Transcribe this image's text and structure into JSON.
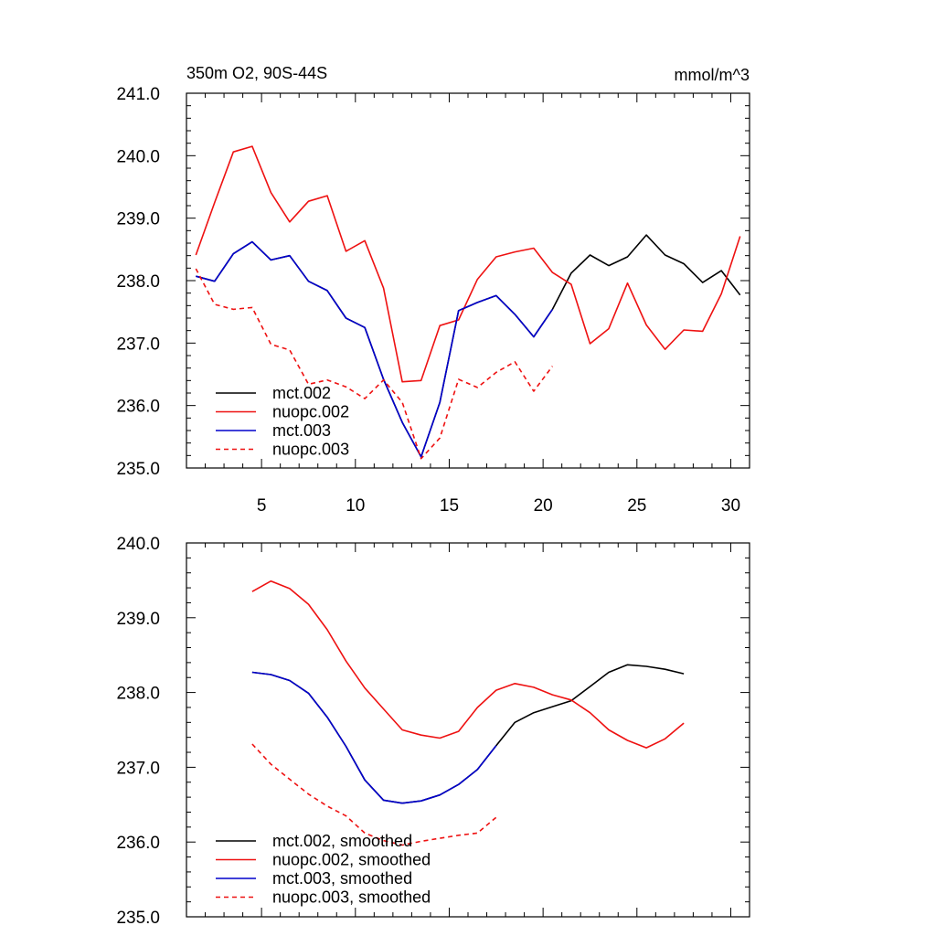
{
  "chart_data": [
    {
      "type": "line",
      "title": "350m O2, 90S-44S",
      "units": "mmol/m^3",
      "xlabel": "",
      "ylabel": "",
      "xlim": [
        1,
        31
      ],
      "ylim": [
        235.0,
        241.0
      ],
      "x_ticks": [
        5,
        10,
        15,
        20,
        25,
        30
      ],
      "x_tick_labels": [
        "5",
        "10",
        "15",
        "20",
        "25",
        "30"
      ],
      "y_ticks": [
        235.0,
        236.0,
        237.0,
        238.0,
        239.0,
        240.0,
        241.0
      ],
      "y_tick_labels": [
        "235.0",
        "236.0",
        "237.0",
        "238.0",
        "239.0",
        "240.0",
        "241.0"
      ],
      "legend_position": "bottom-left",
      "series": [
        {
          "name": "mct.002",
          "color": "#000000",
          "dash": "solid",
          "x": [
            1.5,
            2.5,
            3.5,
            4.5,
            5.5,
            6.5,
            7.5,
            8.5,
            9.5,
            10.5,
            11.5,
            12.5,
            13.5,
            14.5,
            15.5,
            16.5,
            17.5,
            18.5,
            19.5,
            20.5,
            21.5,
            22.5,
            23.5,
            24.5,
            25.5,
            26.5,
            27.5,
            28.5,
            29.5,
            30.5
          ],
          "values": [
            238.07,
            237.99,
            238.43,
            238.62,
            238.33,
            238.4,
            237.99,
            237.84,
            237.4,
            237.25,
            236.42,
            235.73,
            235.18,
            236.05,
            237.52,
            237.65,
            237.76,
            237.46,
            237.1,
            237.54,
            238.12,
            238.41,
            238.24,
            238.38,
            238.73,
            238.41,
            238.27,
            237.97,
            238.16,
            237.77
          ]
        },
        {
          "name": "nuopc.002",
          "color": "#ee1111",
          "dash": "solid",
          "x": [
            1.5,
            2.5,
            3.5,
            4.5,
            5.5,
            6.5,
            7.5,
            8.5,
            9.5,
            10.5,
            11.5,
            12.5,
            13.5,
            14.5,
            15.5,
            16.5,
            17.5,
            18.5,
            19.5,
            20.5,
            21.5,
            22.5,
            23.5,
            24.5,
            25.5,
            26.5,
            27.5,
            28.5,
            29.5,
            30.5
          ],
          "values": [
            238.41,
            239.25,
            240.06,
            240.15,
            239.41,
            238.94,
            239.27,
            239.36,
            238.47,
            238.64,
            237.88,
            236.38,
            236.4,
            237.28,
            237.37,
            238.02,
            238.38,
            238.46,
            238.52,
            238.13,
            237.94,
            236.99,
            237.23,
            237.96,
            237.29,
            236.9,
            237.21,
            237.19,
            237.79,
            238.71
          ]
        },
        {
          "name": "mct.003",
          "color": "#0000cc",
          "dash": "solid",
          "x": [
            1.5,
            2.5,
            3.5,
            4.5,
            5.5,
            6.5,
            7.5,
            8.5,
            9.5,
            10.5,
            11.5,
            12.5,
            13.5,
            14.5,
            15.5,
            16.5,
            17.5,
            18.5,
            19.5,
            20.5
          ],
          "values": [
            238.07,
            237.99,
            238.43,
            238.62,
            238.33,
            238.4,
            237.99,
            237.84,
            237.4,
            237.25,
            236.42,
            235.73,
            235.18,
            236.05,
            237.52,
            237.65,
            237.76,
            237.46,
            237.1,
            237.54
          ]
        },
        {
          "name": "nuopc.003",
          "color": "#ee1111",
          "dash": "dashed",
          "x": [
            1.5,
            2.5,
            3.5,
            4.5,
            5.5,
            6.5,
            7.5,
            8.5,
            9.5,
            10.5,
            11.5,
            12.5,
            13.5,
            14.5,
            15.5,
            16.5,
            17.5,
            18.5,
            19.5,
            20.5
          ],
          "values": [
            238.19,
            237.62,
            237.54,
            237.57,
            236.98,
            236.89,
            236.34,
            236.41,
            236.3,
            236.11,
            236.41,
            236.05,
            235.15,
            235.48,
            236.42,
            236.29,
            236.53,
            236.7,
            236.23,
            236.63
          ]
        }
      ]
    },
    {
      "type": "line",
      "title": "",
      "xlabel": "",
      "ylabel": "",
      "xlim": [
        1,
        31
      ],
      "ylim": [
        235.0,
        240.0
      ],
      "x_ticks": [
        5,
        10,
        15,
        20,
        25,
        30
      ],
      "x_tick_labels": [],
      "y_ticks": [
        235.0,
        236.0,
        237.0,
        238.0,
        239.0,
        240.0
      ],
      "y_tick_labels": [
        "235.0",
        "236.0",
        "237.0",
        "238.0",
        "239.0",
        "240.0"
      ],
      "legend_position": "bottom-left",
      "series": [
        {
          "name": "mct.002, smoothed",
          "color": "#000000",
          "dash": "solid",
          "x": [
            4.5,
            5.5,
            6.5,
            7.5,
            8.5,
            9.5,
            10.5,
            11.5,
            12.5,
            13.5,
            14.5,
            15.5,
            16.5,
            17.5,
            18.5,
            19.5,
            20.5,
            21.5,
            22.5,
            23.5,
            24.5,
            25.5,
            26.5,
            27.5
          ],
          "values": [
            238.27,
            238.24,
            238.16,
            237.99,
            237.67,
            237.28,
            236.83,
            236.56,
            236.52,
            236.55,
            236.63,
            236.77,
            236.97,
            237.29,
            237.6,
            237.73,
            237.81,
            237.89,
            238.08,
            238.27,
            238.37,
            238.35,
            238.31,
            238.25
          ]
        },
        {
          "name": "nuopc.002, smoothed",
          "color": "#ee1111",
          "dash": "solid",
          "x": [
            4.5,
            5.5,
            6.5,
            7.5,
            8.5,
            9.5,
            10.5,
            11.5,
            12.5,
            13.5,
            14.5,
            15.5,
            16.5,
            17.5,
            18.5,
            19.5,
            20.5,
            21.5,
            22.5,
            23.5,
            24.5,
            25.5,
            26.5,
            27.5
          ],
          "values": [
            239.35,
            239.49,
            239.39,
            239.18,
            238.84,
            238.42,
            238.06,
            237.78,
            237.5,
            237.43,
            237.39,
            237.48,
            237.8,
            238.03,
            238.12,
            238.07,
            237.97,
            237.9,
            237.73,
            237.5,
            237.36,
            237.26,
            237.38,
            237.59
          ]
        },
        {
          "name": "mct.003, smoothed",
          "color": "#0000cc",
          "dash": "solid",
          "x": [
            4.5,
            5.5,
            6.5,
            7.5,
            8.5,
            9.5,
            10.5,
            11.5,
            12.5,
            13.5,
            14.5,
            15.5,
            16.5,
            17.5
          ],
          "values": [
            238.27,
            238.24,
            238.16,
            237.99,
            237.67,
            237.28,
            236.83,
            236.56,
            236.52,
            236.55,
            236.63,
            236.77,
            236.97,
            237.29
          ]
        },
        {
          "name": "nuopc.003, smoothed",
          "color": "#ee1111",
          "dash": "dashed",
          "x": [
            4.5,
            5.5,
            6.5,
            7.5,
            8.5,
            9.5,
            10.5,
            11.5,
            12.5,
            13.5,
            14.5,
            15.5,
            16.5,
            17.5
          ],
          "values": [
            237.31,
            237.04,
            236.84,
            236.64,
            236.48,
            236.35,
            236.12,
            236.02,
            235.96,
            236.01,
            236.05,
            236.09,
            236.12,
            236.33
          ]
        }
      ]
    }
  ]
}
